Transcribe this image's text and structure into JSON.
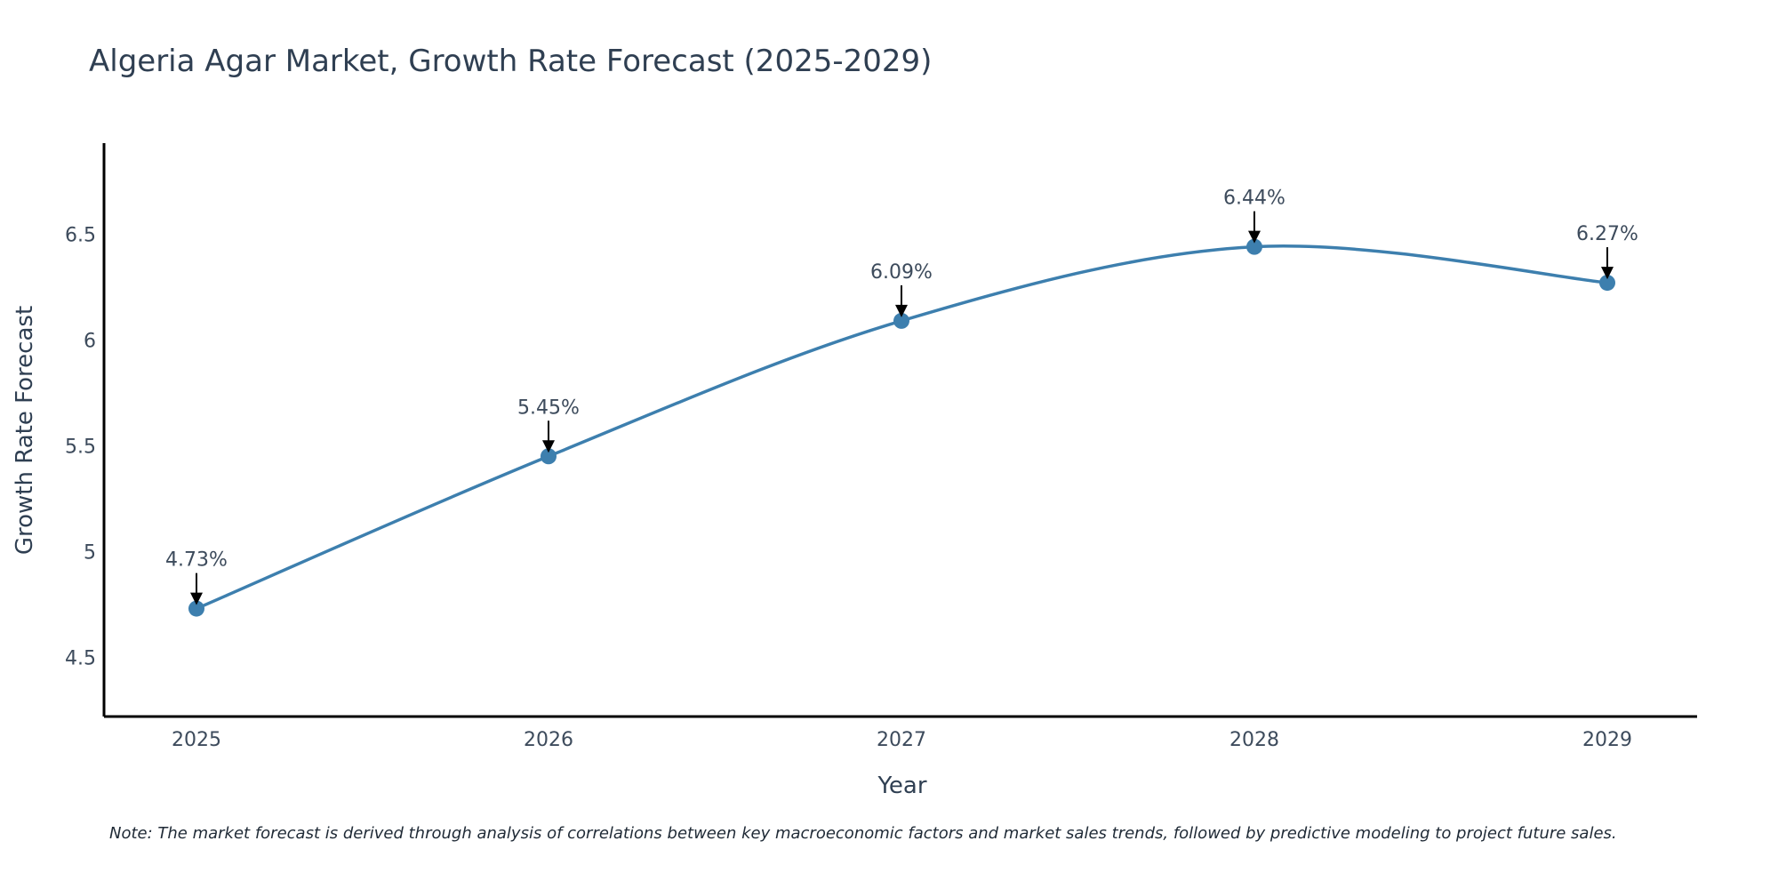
{
  "chart_data": {
    "type": "line",
    "title": "Algeria Agar Market, Growth Rate Forecast (2025-2029)",
    "xlabel": "Year",
    "ylabel": "Growth Rate Forecast",
    "categories": [
      "2025",
      "2026",
      "2027",
      "2028",
      "2029"
    ],
    "series": [
      {
        "name": "Growth Rate Forecast",
        "values": [
          4.73,
          5.45,
          6.09,
          6.44,
          6.27
        ],
        "labels": [
          "4.73%",
          "5.45%",
          "6.09%",
          "6.44%",
          "6.27%"
        ],
        "color": "#3d7fae"
      }
    ],
    "yticks": [
      4.5,
      5,
      5.5,
      6,
      6.5
    ],
    "ytick_labels": [
      "4.5",
      "5",
      "5.5",
      "6",
      "6.5"
    ],
    "ylim": [
      4.22,
      6.93
    ],
    "grid": false,
    "note": "Note: The market forecast is derived through analysis of correlations between key macroeconomic factors and market sales trends, followed by predictive modeling to project future sales."
  },
  "colors": {
    "axis": "#000000",
    "line": "#3d7fae",
    "arrow": "#000000"
  }
}
